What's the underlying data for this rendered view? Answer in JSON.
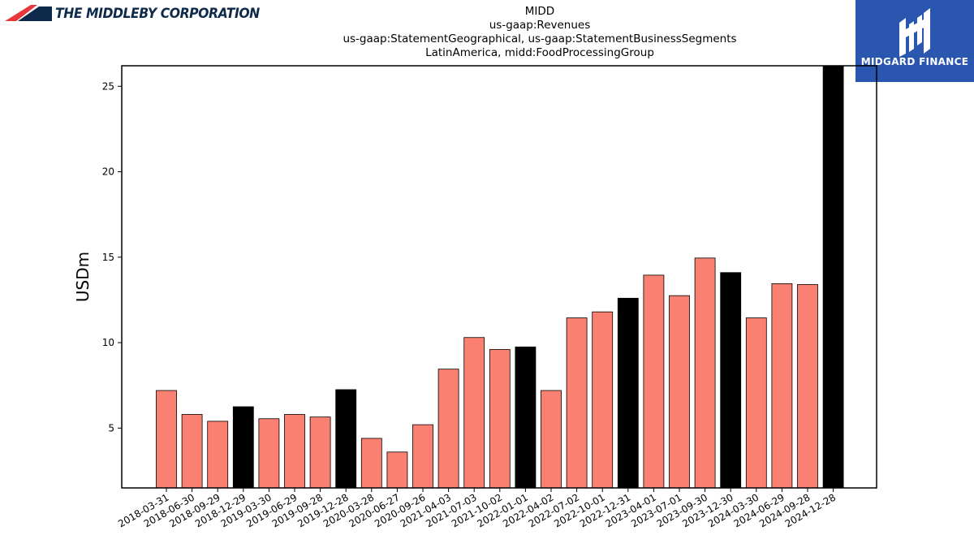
{
  "header": {
    "company_logo": "THE MIDDLEBY CORPORATION",
    "brand": "MIDGARD FINANCE"
  },
  "colors": {
    "bar": "#fa8072",
    "bar_highlight": "#000000",
    "brand_bg": "#2a56b0",
    "logo_red": "#e8383d",
    "logo_navy": "#0d2a4a"
  },
  "chart_data": {
    "type": "bar",
    "title_lines": [
      "MIDD",
      "us-gaap:Revenues",
      "us-gaap:StatementGeographical, us-gaap:StatementBusinessSegments",
      "LatinAmerica, midd:FoodProcessingGroup"
    ],
    "ylabel": "USDm",
    "ylim": [
      1.5,
      26.2
    ],
    "yticks": [
      5,
      10,
      15,
      20,
      25
    ],
    "grid": false,
    "categories": [
      "2018-03-31",
      "2018-06-30",
      "2018-09-29",
      "2018-12-29",
      "2019-03-30",
      "2019-06-29",
      "2019-09-28",
      "2019-12-28",
      "2020-03-28",
      "2020-06-27",
      "2020-09-26",
      "2021-04-03",
      "2021-07-03",
      "2021-10-02",
      "2022-01-01",
      "2022-04-02",
      "2022-07-02",
      "2022-10-01",
      "2022-12-31",
      "2023-04-01",
      "2023-07-01",
      "2023-09-30",
      "2023-12-30",
      "2024-03-30",
      "2024-06-29",
      "2024-09-28",
      "2024-12-28"
    ],
    "values": [
      7.2,
      5.8,
      5.4,
      6.25,
      5.55,
      5.8,
      5.65,
      7.25,
      4.4,
      3.6,
      5.2,
      8.45,
      10.3,
      9.6,
      9.75,
      7.2,
      11.45,
      11.8,
      12.6,
      13.95,
      12.75,
      14.95,
      14.1,
      11.45,
      13.45,
      13.4,
      26.2
    ],
    "highlighted": [
      false,
      false,
      false,
      true,
      false,
      false,
      false,
      true,
      false,
      false,
      false,
      false,
      false,
      false,
      true,
      false,
      false,
      false,
      true,
      false,
      false,
      false,
      true,
      false,
      false,
      false,
      true
    ]
  }
}
